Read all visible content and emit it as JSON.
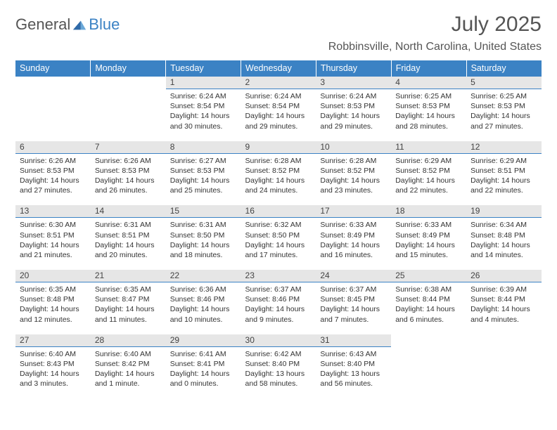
{
  "logo": {
    "general": "General",
    "blue": "Blue"
  },
  "header": {
    "month_title": "July 2025",
    "location": "Robbinsville, North Carolina, United States"
  },
  "colors": {
    "header_bg": "#3b82c4",
    "daynum_bg": "#e6e6e6",
    "daynum_border": "#3b82c4",
    "text": "#333333"
  },
  "dow": [
    "Sunday",
    "Monday",
    "Tuesday",
    "Wednesday",
    "Thursday",
    "Friday",
    "Saturday"
  ],
  "weeks": [
    [
      null,
      null,
      {
        "n": "1",
        "sr": "Sunrise: 6:24 AM",
        "ss": "Sunset: 8:54 PM",
        "dl1": "Daylight: 14 hours",
        "dl2": "and 30 minutes."
      },
      {
        "n": "2",
        "sr": "Sunrise: 6:24 AM",
        "ss": "Sunset: 8:54 PM",
        "dl1": "Daylight: 14 hours",
        "dl2": "and 29 minutes."
      },
      {
        "n": "3",
        "sr": "Sunrise: 6:24 AM",
        "ss": "Sunset: 8:53 PM",
        "dl1": "Daylight: 14 hours",
        "dl2": "and 29 minutes."
      },
      {
        "n": "4",
        "sr": "Sunrise: 6:25 AM",
        "ss": "Sunset: 8:53 PM",
        "dl1": "Daylight: 14 hours",
        "dl2": "and 28 minutes."
      },
      {
        "n": "5",
        "sr": "Sunrise: 6:25 AM",
        "ss": "Sunset: 8:53 PM",
        "dl1": "Daylight: 14 hours",
        "dl2": "and 27 minutes."
      }
    ],
    [
      {
        "n": "6",
        "sr": "Sunrise: 6:26 AM",
        "ss": "Sunset: 8:53 PM",
        "dl1": "Daylight: 14 hours",
        "dl2": "and 27 minutes."
      },
      {
        "n": "7",
        "sr": "Sunrise: 6:26 AM",
        "ss": "Sunset: 8:53 PM",
        "dl1": "Daylight: 14 hours",
        "dl2": "and 26 minutes."
      },
      {
        "n": "8",
        "sr": "Sunrise: 6:27 AM",
        "ss": "Sunset: 8:53 PM",
        "dl1": "Daylight: 14 hours",
        "dl2": "and 25 minutes."
      },
      {
        "n": "9",
        "sr": "Sunrise: 6:28 AM",
        "ss": "Sunset: 8:52 PM",
        "dl1": "Daylight: 14 hours",
        "dl2": "and 24 minutes."
      },
      {
        "n": "10",
        "sr": "Sunrise: 6:28 AM",
        "ss": "Sunset: 8:52 PM",
        "dl1": "Daylight: 14 hours",
        "dl2": "and 23 minutes."
      },
      {
        "n": "11",
        "sr": "Sunrise: 6:29 AM",
        "ss": "Sunset: 8:52 PM",
        "dl1": "Daylight: 14 hours",
        "dl2": "and 22 minutes."
      },
      {
        "n": "12",
        "sr": "Sunrise: 6:29 AM",
        "ss": "Sunset: 8:51 PM",
        "dl1": "Daylight: 14 hours",
        "dl2": "and 22 minutes."
      }
    ],
    [
      {
        "n": "13",
        "sr": "Sunrise: 6:30 AM",
        "ss": "Sunset: 8:51 PM",
        "dl1": "Daylight: 14 hours",
        "dl2": "and 21 minutes."
      },
      {
        "n": "14",
        "sr": "Sunrise: 6:31 AM",
        "ss": "Sunset: 8:51 PM",
        "dl1": "Daylight: 14 hours",
        "dl2": "and 20 minutes."
      },
      {
        "n": "15",
        "sr": "Sunrise: 6:31 AM",
        "ss": "Sunset: 8:50 PM",
        "dl1": "Daylight: 14 hours",
        "dl2": "and 18 minutes."
      },
      {
        "n": "16",
        "sr": "Sunrise: 6:32 AM",
        "ss": "Sunset: 8:50 PM",
        "dl1": "Daylight: 14 hours",
        "dl2": "and 17 minutes."
      },
      {
        "n": "17",
        "sr": "Sunrise: 6:33 AM",
        "ss": "Sunset: 8:49 PM",
        "dl1": "Daylight: 14 hours",
        "dl2": "and 16 minutes."
      },
      {
        "n": "18",
        "sr": "Sunrise: 6:33 AM",
        "ss": "Sunset: 8:49 PM",
        "dl1": "Daylight: 14 hours",
        "dl2": "and 15 minutes."
      },
      {
        "n": "19",
        "sr": "Sunrise: 6:34 AM",
        "ss": "Sunset: 8:48 PM",
        "dl1": "Daylight: 14 hours",
        "dl2": "and 14 minutes."
      }
    ],
    [
      {
        "n": "20",
        "sr": "Sunrise: 6:35 AM",
        "ss": "Sunset: 8:48 PM",
        "dl1": "Daylight: 14 hours",
        "dl2": "and 12 minutes."
      },
      {
        "n": "21",
        "sr": "Sunrise: 6:35 AM",
        "ss": "Sunset: 8:47 PM",
        "dl1": "Daylight: 14 hours",
        "dl2": "and 11 minutes."
      },
      {
        "n": "22",
        "sr": "Sunrise: 6:36 AM",
        "ss": "Sunset: 8:46 PM",
        "dl1": "Daylight: 14 hours",
        "dl2": "and 10 minutes."
      },
      {
        "n": "23",
        "sr": "Sunrise: 6:37 AM",
        "ss": "Sunset: 8:46 PM",
        "dl1": "Daylight: 14 hours",
        "dl2": "and 9 minutes."
      },
      {
        "n": "24",
        "sr": "Sunrise: 6:37 AM",
        "ss": "Sunset: 8:45 PM",
        "dl1": "Daylight: 14 hours",
        "dl2": "and 7 minutes."
      },
      {
        "n": "25",
        "sr": "Sunrise: 6:38 AM",
        "ss": "Sunset: 8:44 PM",
        "dl1": "Daylight: 14 hours",
        "dl2": "and 6 minutes."
      },
      {
        "n": "26",
        "sr": "Sunrise: 6:39 AM",
        "ss": "Sunset: 8:44 PM",
        "dl1": "Daylight: 14 hours",
        "dl2": "and 4 minutes."
      }
    ],
    [
      {
        "n": "27",
        "sr": "Sunrise: 6:40 AM",
        "ss": "Sunset: 8:43 PM",
        "dl1": "Daylight: 14 hours",
        "dl2": "and 3 minutes."
      },
      {
        "n": "28",
        "sr": "Sunrise: 6:40 AM",
        "ss": "Sunset: 8:42 PM",
        "dl1": "Daylight: 14 hours",
        "dl2": "and 1 minute."
      },
      {
        "n": "29",
        "sr": "Sunrise: 6:41 AM",
        "ss": "Sunset: 8:41 PM",
        "dl1": "Daylight: 14 hours",
        "dl2": "and 0 minutes."
      },
      {
        "n": "30",
        "sr": "Sunrise: 6:42 AM",
        "ss": "Sunset: 8:40 PM",
        "dl1": "Daylight: 13 hours",
        "dl2": "and 58 minutes."
      },
      {
        "n": "31",
        "sr": "Sunrise: 6:43 AM",
        "ss": "Sunset: 8:40 PM",
        "dl1": "Daylight: 13 hours",
        "dl2": "and 56 minutes."
      },
      null,
      null
    ]
  ]
}
